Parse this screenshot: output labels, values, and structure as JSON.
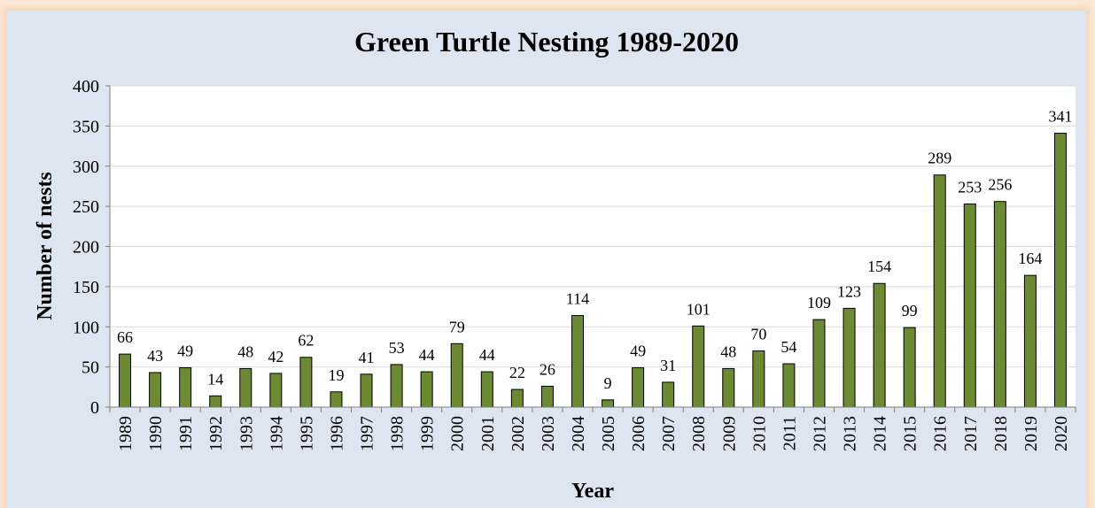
{
  "chart_data": {
    "type": "bar",
    "title": "Green Turtle Nesting 1989-2020",
    "xlabel": "Year",
    "ylabel": "Number of nests",
    "ylim": [
      0,
      400
    ],
    "yticks": [
      0,
      50,
      100,
      150,
      200,
      250,
      300,
      350,
      400
    ],
    "grid": true,
    "categories": [
      "1989",
      "1990",
      "1991",
      "1992",
      "1993",
      "1994",
      "1995",
      "1996",
      "1997",
      "1998",
      "1999",
      "2000",
      "2001",
      "2002",
      "2003",
      "2004",
      "2005",
      "2006",
      "2007",
      "2008",
      "2009",
      "2010",
      "2011",
      "2012",
      "2013",
      "2014",
      "2015",
      "2016",
      "2017",
      "2018",
      "2019",
      "2020"
    ],
    "values": [
      66,
      43,
      49,
      14,
      48,
      42,
      62,
      19,
      41,
      53,
      44,
      79,
      44,
      22,
      26,
      114,
      9,
      49,
      31,
      101,
      48,
      70,
      54,
      109,
      123,
      154,
      99,
      289,
      253,
      256,
      164,
      341
    ],
    "bar_color": "#6b8a32",
    "background_color": "#dde6f0",
    "plot_area_color": "#ffffff"
  }
}
